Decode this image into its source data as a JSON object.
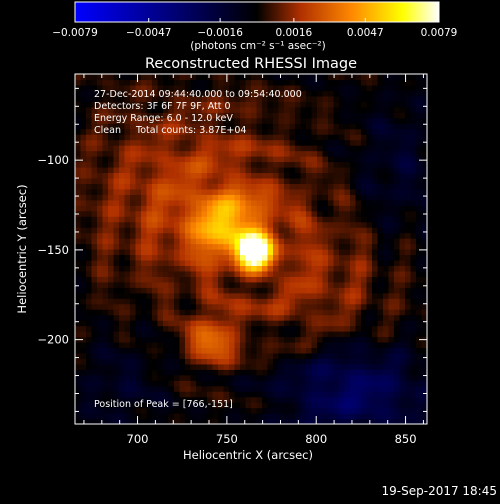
{
  "chart_data": {
    "type": "heatmap",
    "title": "Reconstructed RHESSI Image",
    "xlabel": "Heliocentric X (arcsec)",
    "ylabel": "Heliocentric Y (arcsec)",
    "xlim": [
      665,
      862
    ],
    "ylim": [
      -247,
      -52
    ],
    "x_ticks": [
      "700",
      "750",
      "800",
      "850"
    ],
    "x_tick_values": [
      700,
      750,
      800,
      850
    ],
    "y_ticks": [
      "-100",
      "-150",
      "-200"
    ],
    "y_tick_values": [
      -100,
      -150,
      -200
    ],
    "colorbar": {
      "range": [
        -0.0079,
        0.0079
      ],
      "tick_labels": [
        "-0.0079",
        "-0.0047",
        "-0.0016",
        "0.0016",
        "0.0047",
        "0.0079"
      ],
      "tick_values": [
        -0.0079,
        -0.0047,
        -0.0016,
        0.0016,
        0.0047,
        0.0079
      ],
      "units": "(photons cm⁻² s⁻¹ asec⁻²)",
      "colormap": [
        "#0000ff",
        "#000000",
        "#b03000",
        "#ff8800",
        "#ffff00",
        "#ffffff"
      ]
    },
    "annotations": [
      "27-Dec-2014 09:44:40.000 to 09:54:40.000",
      "Detectors: 3F 6F 7F 9F, Att 0",
      "Energy Range: 6.0 - 12.0 keV",
      "Clean     Total counts: 3.87E+04"
    ],
    "peak_label": "Position of Peak = [766,-151]",
    "peak": {
      "x": 766,
      "y": -151,
      "value": 0.0079
    },
    "sources": [
      {
        "x": 766,
        "y": -151,
        "sx": 6,
        "sy": 6,
        "amp": 0.0079
      },
      {
        "x": 752,
        "y": -138,
        "sx": 14,
        "sy": 12,
        "amp": 0.004
      },
      {
        "x": 742,
        "y": -200,
        "sx": 10,
        "sy": 10,
        "amp": 0.0032
      },
      {
        "x": 730,
        "y": -120,
        "sx": 40,
        "sy": 35,
        "amp": 0.0022
      },
      {
        "x": 800,
        "y": -170,
        "sx": 30,
        "sy": 30,
        "amp": 0.0014
      }
    ],
    "negative_regions": [
      {
        "x": 820,
        "y": -228,
        "sx": 28,
        "sy": 18,
        "amp": -0.003
      },
      {
        "x": 845,
        "y": -105,
        "sx": 16,
        "sy": 28,
        "amp": -0.0012
      },
      {
        "x": 690,
        "y": -225,
        "sx": 18,
        "sy": 18,
        "amp": -0.001
      }
    ],
    "grid": false
  },
  "footer": {
    "timestamp": "19-Sep-2017 18:45"
  }
}
